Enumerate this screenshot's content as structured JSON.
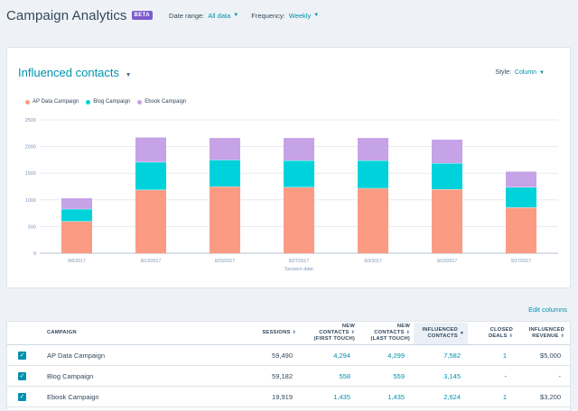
{
  "header": {
    "title": "Campaign Analytics",
    "badge": "BETA",
    "date_range_label": "Date range:",
    "date_range_value": "All data",
    "frequency_label": "Frequency:",
    "frequency_value": "Weekly"
  },
  "report": {
    "title": "Influenced contacts",
    "style_label": "Style:",
    "style_value": "Column",
    "edit_columns": "Edit columns"
  },
  "colors": {
    "ap": "#fb9b83",
    "blog": "#00d2db",
    "ebook": "#c6a2e6",
    "accent": "#0091ae"
  },
  "chart_data": {
    "type": "bar",
    "stacked": true,
    "xlabel": "Session date",
    "ylabel": "",
    "ylim": [
      0,
      2500
    ],
    "yticks": [
      "0",
      "500",
      "1000",
      "1500",
      "2000",
      "2500"
    ],
    "categories": [
      "8/6/2017",
      "8/13/2017",
      "8/20/2017",
      "8/27/2017",
      "9/3/2017",
      "9/10/2017",
      "9/17/2017"
    ],
    "series": [
      {
        "name": "AP Data Campaign",
        "values": [
          600,
          1190,
          1250,
          1240,
          1220,
          1200,
          860
        ]
      },
      {
        "name": "Blog Campaign",
        "values": [
          230,
          520,
          500,
          500,
          520,
          490,
          380
        ]
      },
      {
        "name": "Ebook Campaign",
        "values": [
          200,
          460,
          410,
          420,
          420,
          440,
          290
        ]
      }
    ],
    "grid": true,
    "legend_position": "top-left"
  },
  "table": {
    "headers": {
      "campaign": "CAMPAIGN",
      "sessions": "SESSIONS",
      "new_first_1": "NEW",
      "new_first_2": "CONTACTS",
      "new_first_3": "(FIRST TOUCH)",
      "new_last_1": "NEW",
      "new_last_2": "CONTACTS",
      "new_last_3": "(LAST TOUCH)",
      "influenced_1": "INFLUENCED",
      "influenced_2": "CONTACTS",
      "closed_1": "CLOSED",
      "closed_2": "DEALS",
      "revenue_1": "INFLUENCED",
      "revenue_2": "REVENUE"
    },
    "rows": [
      {
        "campaign": "AP Data Campaign",
        "sessions": "59,490",
        "new_first": "4,294",
        "new_last": "4,299",
        "influenced": "7,582",
        "closed": "1",
        "revenue": "$5,000"
      },
      {
        "campaign": "Blog Campaign",
        "sessions": "59,182",
        "new_first": "558",
        "new_last": "559",
        "influenced": "3,145",
        "closed": "-",
        "revenue": "-"
      },
      {
        "campaign": "Ebook Campaign",
        "sessions": "19,919",
        "new_first": "1,435",
        "new_last": "1,435",
        "influenced": "2,624",
        "closed": "1",
        "revenue": "$3,200"
      }
    ]
  }
}
